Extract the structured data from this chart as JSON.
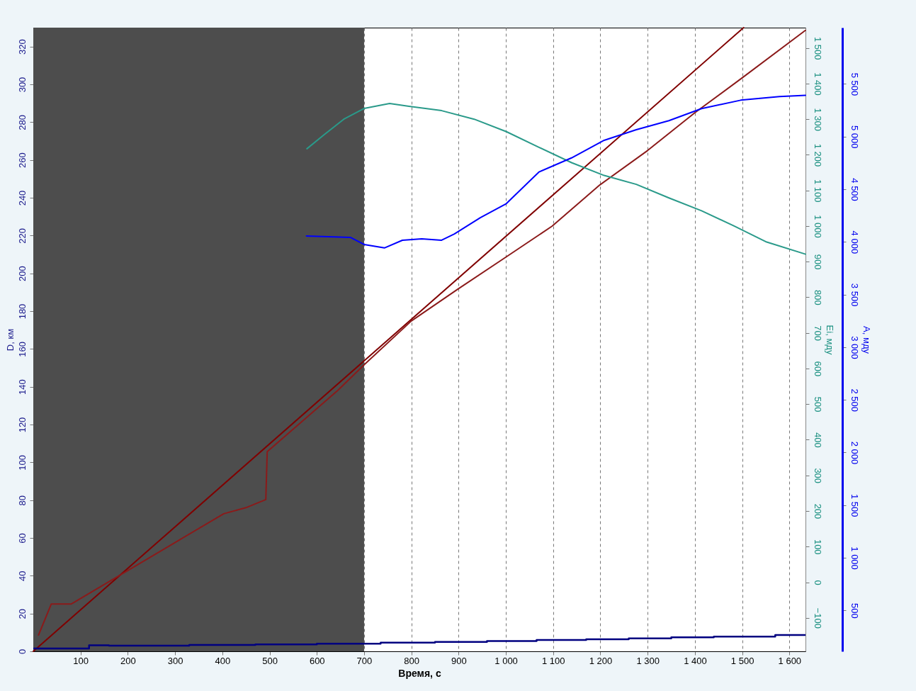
{
  "chart_data": {
    "type": "line",
    "xlabel": "Время, с",
    "ylabel": "D, км",
    "y2label": "Ei, мду",
    "y3label": "A, мду",
    "xlim": [
      0,
      1634
    ],
    "xticks": [
      100,
      200,
      300,
      400,
      500,
      600,
      700,
      800,
      900,
      {
        "value": 1000,
        "label": "1 000"
      },
      {
        "value": 1100,
        "label": "1 100"
      },
      {
        "value": 1200,
        "label": "1 200"
      },
      {
        "value": 1300,
        "label": "1 300"
      },
      {
        "value": 1400,
        "label": "1 400"
      },
      {
        "value": 1500,
        "label": "1 500"
      },
      {
        "value": 1600,
        "label": "1 600"
      }
    ],
    "ylim": [
      0,
      330
    ],
    "yticks": [
      0,
      20,
      40,
      60,
      80,
      100,
      120,
      140,
      160,
      180,
      200,
      220,
      240,
      260,
      280,
      300,
      320
    ],
    "y2lim": [
      -194,
      1557
    ],
    "y2ticks": [
      -100,
      0,
      100,
      200,
      300,
      400,
      500,
      600,
      700,
      800,
      900,
      {
        "value": 1000,
        "label": "1 000"
      },
      {
        "value": 1100,
        "label": "1 100"
      },
      {
        "value": 1200,
        "label": "1 200"
      },
      {
        "value": 1300,
        "label": "1 300"
      },
      {
        "value": 1400,
        "label": "1 400"
      },
      {
        "value": 1500,
        "label": "1 500"
      }
    ],
    "y3lim": [
      112,
      6035
    ],
    "y3ticks": [
      500,
      {
        "value": 1000,
        "label": "1 000"
      },
      {
        "value": 1500,
        "label": "1 500"
      },
      {
        "value": 2000,
        "label": "2 000"
      },
      {
        "value": 2500,
        "label": "2 500"
      },
      {
        "value": 3000,
        "label": "3 000"
      },
      {
        "value": 3500,
        "label": "3 500"
      },
      {
        "value": 4000,
        "label": "4 000"
      },
      {
        "value": 4500,
        "label": "4 500"
      },
      {
        "value": 5000,
        "label": "5 000"
      },
      {
        "value": 5500,
        "label": "5 500"
      }
    ],
    "grid": "x",
    "bands": [
      {
        "axis": "x",
        "from": 0,
        "to": 700,
        "color": "#4d4d4d"
      }
    ],
    "series": [
      {
        "color": "#800000",
        "x": [
          0,
          1503
        ],
        "values": [
          0,
          330
        ]
      },
      {
        "color": "#8b1a1a",
        "x": [
          11,
          38,
          80,
          null,
          403,
          450,
          492,
          495,
          575,
          644,
          700,
          800,
          898,
          999,
          1098,
          1199,
          1300,
          1400,
          1501,
          1634
        ],
        "values": [
          8.6,
          25,
          25,
          null,
          72.8,
          76,
          80.3,
          105.7,
          123,
          138,
          151.6,
          174.8,
          191.6,
          208.4,
          225,
          246.8,
          265,
          285,
          303.6,
          328.6
        ]
      },
      {
        "type": "step",
        "color": "#000080",
        "x": [
          0,
          118,
          160,
          330,
          470,
          600,
          735,
          850,
          960,
          1065,
          1170,
          1260,
          1350,
          1440,
          1570,
          1634
        ],
        "values": [
          1.5,
          3.2,
          3.0,
          3.4,
          3.7,
          4.0,
          4.6,
          5.0,
          5.4,
          6.0,
          6.4,
          6.8,
          7.4,
          7.8,
          8.6,
          8.6
        ]
      },
      {
        "color": "#2a9a8a",
        "axis": "y2",
        "x": [
          579,
          616,
          657,
          700,
          754,
          795,
          864,
          933,
          1001,
          1070,
          1139,
          1208,
          1276,
          1345,
          1414,
          1483,
          1552,
          1634
        ],
        "values": [
          1217,
          1257,
          1300,
          1330,
          1344,
          1336,
          1324,
          1300,
          1265,
          1221,
          1178,
          1142,
          1117,
          1079,
          1043,
          1000,
          955,
          921
        ]
      },
      {
        "color": "#0000ff",
        "axis": "y3",
        "x": [
          578,
          671,
          700,
          743,
          781,
          822,
          864,
          891,
          946,
          1001,
          1070,
          1139,
          1208,
          1276,
          1345,
          1414,
          1497,
          1579,
          1634
        ],
        "values": [
          4056,
          4043,
          3976,
          3943,
          4016,
          4029,
          4016,
          4076,
          4230,
          4364,
          4664,
          4798,
          4965,
          5066,
          5152,
          5266,
          5346,
          5380,
          5393
        ]
      }
    ]
  }
}
